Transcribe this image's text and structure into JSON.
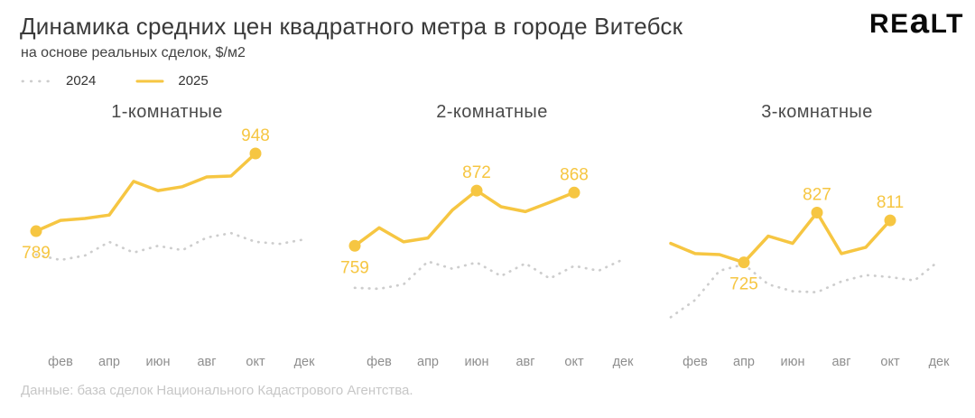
{
  "header": {
    "title": "Динамика средних цен квадратного метра в городе Витебск",
    "subtitle": "на основе реальных сделок, $/м2"
  },
  "logo": {
    "part1": "RE",
    "mid": "a",
    "part2": "LT"
  },
  "legend": {
    "items": [
      {
        "label": "2024",
        "style": "dotted"
      },
      {
        "label": "2025",
        "style": "solid"
      }
    ]
  },
  "footer": {
    "source": "Данные: база сделок Национального Кадастрового Агентства."
  },
  "colors": {
    "accent_yellow": "#F6C642",
    "dotted_gray": "#CDCDCD",
    "title_text": "#3A3A3A",
    "facet_title_text": "#4A4A4A",
    "month_label_text": "#8E8E8E",
    "footer_text": "#C7C7C7"
  },
  "chart_data": [
    {
      "type": "line",
      "title": "1-комнатные",
      "x_tick_labels": [
        "фев",
        "апр",
        "июн",
        "авг",
        "окт",
        "дек"
      ],
      "x_tick_months": [
        2,
        4,
        6,
        8,
        10,
        12
      ],
      "ylim": [
        590,
        990
      ],
      "grid": false,
      "legend_position": "top-left",
      "series": [
        {
          "name": "2024",
          "style": "dotted",
          "months": [
            1,
            2,
            3,
            4,
            5,
            6,
            7,
            8,
            9,
            10,
            11,
            12
          ],
          "values": [
            741,
            730,
            739,
            767,
            745,
            759,
            750,
            776,
            785,
            767,
            763,
            772
          ]
        },
        {
          "name": "2025",
          "style": "solid",
          "months": [
            1,
            2,
            3,
            4,
            5,
            6,
            7,
            8,
            9,
            10
          ],
          "values": [
            789,
            811,
            815,
            822,
            891,
            872,
            880,
            900,
            902,
            948
          ],
          "point_labels": [
            {
              "month": 1,
              "value": 789,
              "position": "below"
            },
            {
              "month": 10,
              "value": 948,
              "position": "above"
            }
          ]
        }
      ]
    },
    {
      "type": "line",
      "title": "2-комнатные",
      "x_tick_labels": [
        "фев",
        "апр",
        "июн",
        "авг",
        "окт",
        "дек"
      ],
      "x_tick_months": [
        2,
        4,
        6,
        8,
        10,
        12
      ],
      "ylim": [
        590,
        990
      ],
      "grid": false,
      "series": [
        {
          "name": "2024",
          "style": "dotted",
          "months": [
            1,
            2,
            3,
            4,
            5,
            6,
            7,
            8,
            9,
            10,
            11,
            12
          ],
          "values": [
            673,
            671,
            680,
            727,
            712,
            725,
            697,
            723,
            692,
            718,
            708,
            731
          ]
        },
        {
          "name": "2025",
          "style": "solid",
          "months": [
            1,
            2,
            3,
            4,
            5,
            6,
            7,
            8,
            9,
            10
          ],
          "values": [
            759,
            796,
            767,
            775,
            832,
            872,
            839,
            829,
            848,
            868
          ],
          "point_labels": [
            {
              "month": 1,
              "value": 759,
              "position": "below"
            },
            {
              "month": 6,
              "value": 872,
              "position": "above"
            },
            {
              "month": 10,
              "value": 868,
              "position": "above"
            }
          ]
        }
      ]
    },
    {
      "type": "line",
      "title": "3-комнатные",
      "x_tick_labels": [
        "фев",
        "апр",
        "июн",
        "авг",
        "окт",
        "дек"
      ],
      "x_tick_months": [
        2,
        4,
        6,
        8,
        10,
        12
      ],
      "ylim": [
        590,
        990
      ],
      "grid": false,
      "series": [
        {
          "name": "2024",
          "style": "dotted",
          "months": [
            1,
            2,
            3,
            4,
            5,
            6,
            7,
            8,
            9,
            10,
            11,
            12
          ],
          "values": [
            613,
            648,
            708,
            721,
            680,
            666,
            664,
            686,
            699,
            695,
            688,
            728
          ]
        },
        {
          "name": "2025",
          "style": "solid",
          "months": [
            1,
            2,
            3,
            4,
            5,
            6,
            7,
            8,
            9,
            10
          ],
          "values": [
            764,
            743,
            741,
            725,
            779,
            764,
            827,
            743,
            756,
            811
          ],
          "point_labels": [
            {
              "month": 4,
              "value": 725,
              "position": "below"
            },
            {
              "month": 7,
              "value": 827,
              "position": "above"
            },
            {
              "month": 10,
              "value": 811,
              "position": "above"
            }
          ]
        }
      ]
    }
  ]
}
